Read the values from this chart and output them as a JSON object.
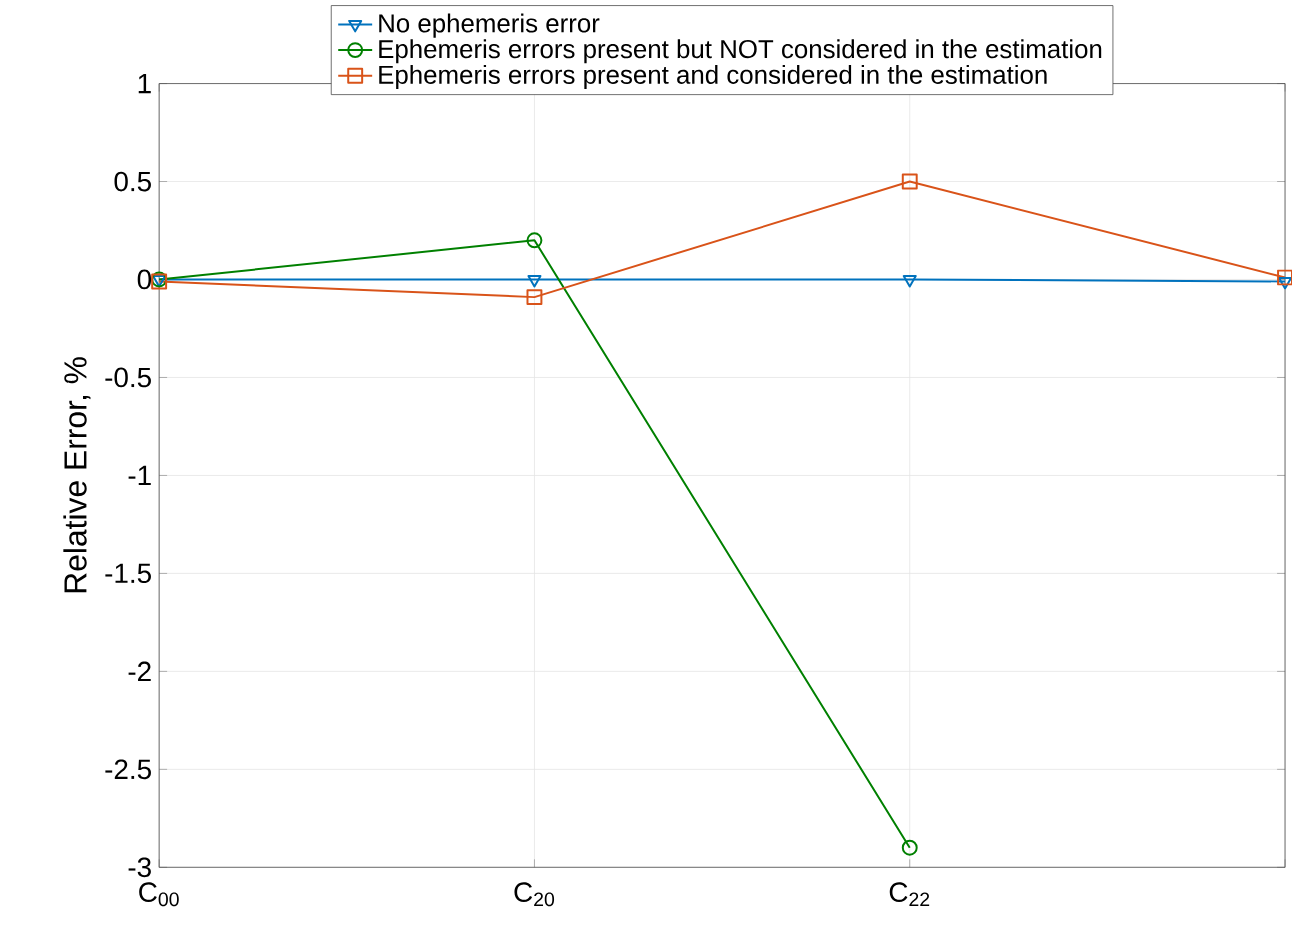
{
  "chart_data": {
    "type": "line",
    "ylabel": "Relative Error, %",
    "categories": [
      "C$_{00}$",
      "C$_{20}$",
      "C$_{22}$",
      null
    ],
    "series": [
      {
        "name": "No ephemeris error",
        "color": "#0072bd",
        "marker": "triangle",
        "values": [
          0,
          0,
          0,
          -0.01
        ]
      },
      {
        "name": "Ephemeris errors present but NOT considered in the estimation",
        "color": "#008000",
        "marker": "circle",
        "values": [
          0,
          0.2,
          -2.9,
          null
        ]
      },
      {
        "name": "Ephemeris errors present and considered in the estimation",
        "color": "#d95319",
        "marker": "square",
        "values": [
          -0.01,
          -0.09,
          0.5,
          0.01
        ]
      }
    ],
    "ylim": [
      -3,
      1
    ],
    "yticks": [
      -3,
      -2.5,
      -2,
      -1.5,
      -1,
      -0.5,
      0,
      0.5,
      1
    ],
    "grid": true,
    "legend": "top",
    "line_style": "solid"
  }
}
